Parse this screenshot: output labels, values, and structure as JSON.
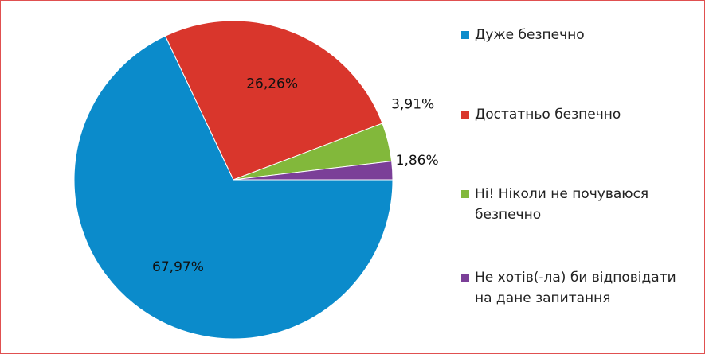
{
  "chart_data": {
    "type": "pie",
    "categories": [
      "Дуже безпечно",
      "Достатньо безпечно",
      "Ні! Ніколи не почуваюся безпечно",
      "Не хотів(-ла) би відповідати на дане запитання"
    ],
    "values": [
      67.97,
      26.26,
      3.91,
      1.86
    ],
    "value_labels": [
      "67,97%",
      "26,26%",
      "3,91%",
      "1,86%"
    ],
    "colors": [
      "#0b8bcb",
      "#d9362c",
      "#82b83b",
      "#7b3f98"
    ],
    "legend": "right"
  }
}
